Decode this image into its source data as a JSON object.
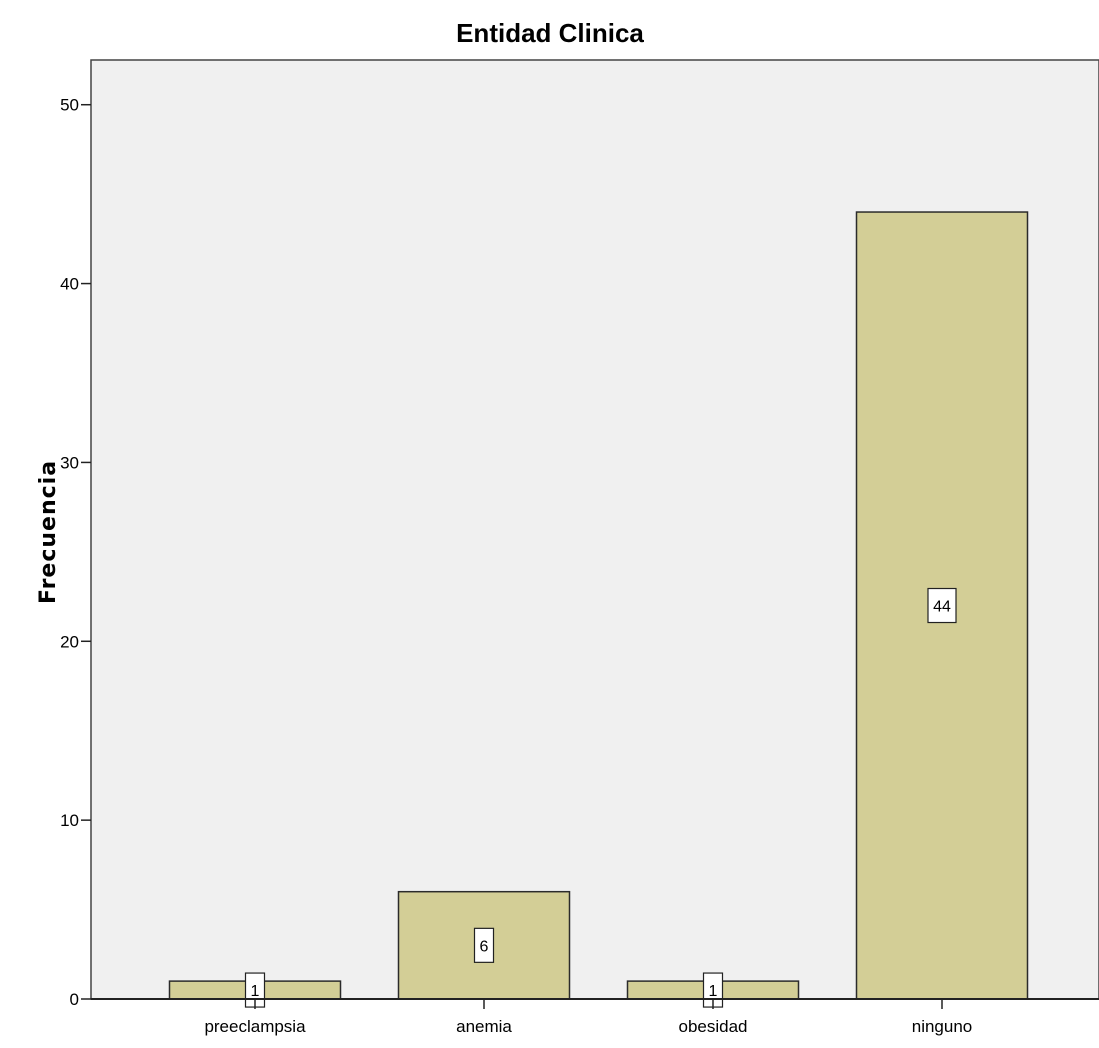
{
  "chart_data": {
    "type": "bar",
    "title": "Entidad Clinica",
    "xlabel": "",
    "ylabel": "Frecuencia",
    "categories": [
      "preeclampsia",
      "anemia",
      "obesidad",
      "ninguno"
    ],
    "values": [
      1,
      6,
      1,
      44
    ],
    "ylim": [
      0,
      52.5
    ],
    "yticks": [
      0,
      10,
      20,
      30,
      40,
      50
    ],
    "data_labels": [
      "1",
      "6",
      "1",
      "44"
    ],
    "grid": false,
    "colors": {
      "bar_fill": "#d3ce96",
      "bar_stroke": "#2b2b2b",
      "plot_background": "#f0f0f0",
      "frame": "#444444"
    }
  }
}
